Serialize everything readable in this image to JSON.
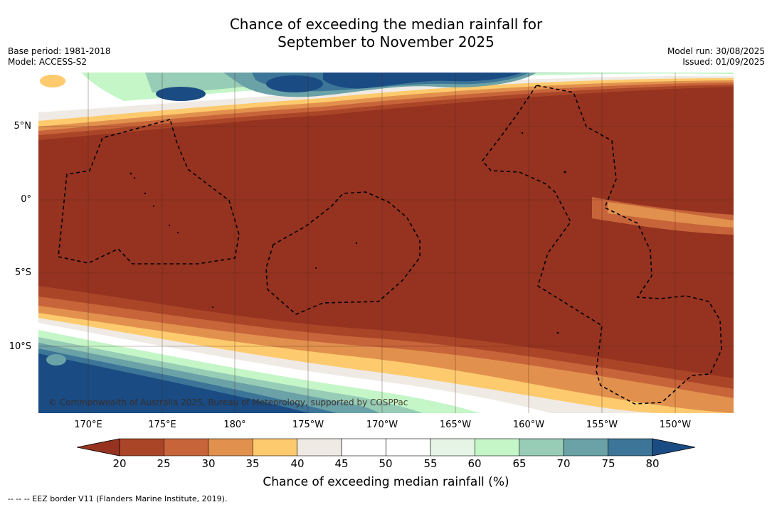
{
  "title_line1": "Chance of exceeding the median rainfall for",
  "title_line2": "September to November 2025",
  "base_period": "Base period: 1981-2018",
  "model": "Model: ACCESS-S2",
  "model_run": "Model run: 30/08/2025",
  "issued": "Issued: 01/09/2025",
  "copyright": "© Commonwealth of Australia 2025, Bureau of Meteorology, supported by COSPPac",
  "lat_labels": [
    "5°N",
    "0°",
    "5°S",
    "10°S"
  ],
  "lon_labels": [
    "170°E",
    "175°E",
    "180°",
    "175°W",
    "170°W",
    "165°W",
    "160°W",
    "155°W",
    "150°W"
  ],
  "colorbar": {
    "ticks": [
      "20",
      "25",
      "30",
      "35",
      "40",
      "45",
      "50",
      "55",
      "60",
      "65",
      "70",
      "75",
      "80"
    ],
    "colors": [
      "#953320",
      "#ab4528",
      "#c8643a",
      "#e1914d",
      "#fdca6e",
      "#efeae4",
      "#ffffff",
      "#ffffff",
      "#e6f4e6",
      "#c4f6c8",
      "#97ccb6",
      "#6aa2a7",
      "#3c7597",
      "#1a4b83"
    ],
    "label": "Chance of exceeding median rainfall (%)"
  },
  "legend_eez": "--  --  -- EEZ border V11 (Flanders Marine Institute, 2019).",
  "map_colors": {
    "dry": "#953320",
    "wet": "#1a4b83",
    "border": "#000000"
  }
}
